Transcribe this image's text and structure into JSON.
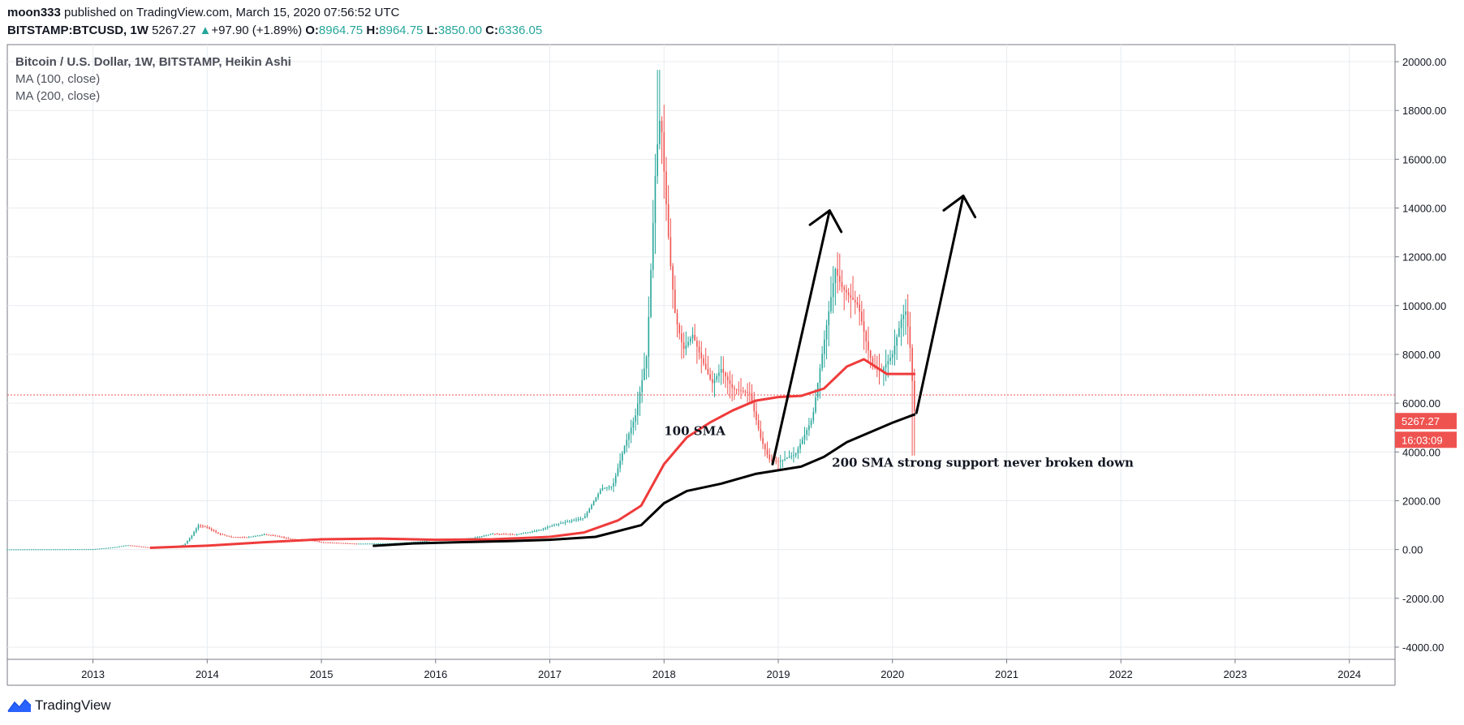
{
  "header": {
    "author": "moon333",
    "published": "published on TradingView.com, March 15, 2020 07:56:52 UTC",
    "symbol": "BITSTAMP:BTCUSD, 1W",
    "last": "5267.27",
    "change_arrow": "▲",
    "change": "+97.90 (+1.89%)",
    "ohlc": [
      {
        "key": "O:",
        "value": "8964.75"
      },
      {
        "key": "H:",
        "value": "8964.75"
      },
      {
        "key": "L:",
        "value": "3850.00"
      },
      {
        "key": "C:",
        "value": "6336.05"
      }
    ]
  },
  "legend": {
    "main": "Bitcoin / U.S. Dollar, 1W, BITSTAMP, Heikin Ashi",
    "ma1": "MA (100, close)",
    "ma2": "MA (200, close)"
  },
  "footer": {
    "brand": "TradingView"
  },
  "colors": {
    "up": "#26a69a",
    "down": "#ef5350",
    "ma100": "#ef3b3b",
    "ma200": "#000000",
    "grid": "#e8ebef"
  },
  "chart_data": {
    "type": "candlestick",
    "style": "Heikin Ashi",
    "x_axis": {
      "ticks": [
        "2013",
        "2014",
        "2015",
        "2016",
        "2017",
        "2018",
        "2019",
        "2020",
        "2021",
        "2022",
        "2023",
        "2024"
      ],
      "range": [
        2012.25,
        2024.4
      ]
    },
    "y_axis": {
      "ticks": [
        -4000,
        -2000,
        0,
        2000,
        4000,
        6000,
        8000,
        10000,
        12000,
        14000,
        16000,
        18000,
        20000
      ],
      "tick_labels": [
        "-4000.00",
        "-2000.00",
        "0.00",
        "2000.00",
        "4000.00",
        "6000.00",
        "8000.00",
        "10000.00",
        "12000.00",
        "14000.00",
        "16000.00",
        "18000.00",
        "20000.00"
      ],
      "range": [
        -4500,
        20700
      ]
    },
    "price_path": [
      [
        2012.25,
        5
      ],
      [
        2013.0,
        15
      ],
      [
        2013.2,
        100
      ],
      [
        2013.3,
        180
      ],
      [
        2013.5,
        80
      ],
      [
        2013.7,
        110
      ],
      [
        2013.8,
        200
      ],
      [
        2013.87,
        600
      ],
      [
        2013.92,
        1000
      ],
      [
        2014.0,
        900
      ],
      [
        2014.1,
        650
      ],
      [
        2014.2,
        520
      ],
      [
        2014.35,
        500
      ],
      [
        2014.5,
        620
      ],
      [
        2014.6,
        560
      ],
      [
        2014.75,
        420
      ],
      [
        2014.9,
        380
      ],
      [
        2015.0,
        300
      ],
      [
        2015.3,
        240
      ],
      [
        2015.6,
        250
      ],
      [
        2015.9,
        340
      ],
      [
        2016.0,
        420
      ],
      [
        2016.3,
        440
      ],
      [
        2016.5,
        650
      ],
      [
        2016.7,
        620
      ],
      [
        2016.9,
        780
      ],
      [
        2017.0,
        950
      ],
      [
        2017.15,
        1150
      ],
      [
        2017.3,
        1300
      ],
      [
        2017.45,
        2500
      ],
      [
        2017.55,
        2600
      ],
      [
        2017.65,
        4200
      ],
      [
        2017.75,
        5500
      ],
      [
        2017.85,
        8000
      ],
      [
        2017.93,
        16000
      ],
      [
        2017.97,
        18000
      ],
      [
        2018.0,
        15500
      ],
      [
        2018.05,
        12000
      ],
      [
        2018.1,
        9500
      ],
      [
        2018.17,
        8200
      ],
      [
        2018.25,
        8800
      ],
      [
        2018.33,
        7800
      ],
      [
        2018.42,
        6800
      ],
      [
        2018.5,
        7400
      ],
      [
        2018.6,
        6600
      ],
      [
        2018.75,
        6400
      ],
      [
        2018.85,
        4500
      ],
      [
        2018.92,
        3700
      ],
      [
        2019.0,
        3600
      ],
      [
        2019.15,
        3900
      ],
      [
        2019.3,
        5400
      ],
      [
        2019.4,
        8500
      ],
      [
        2019.5,
        11500
      ],
      [
        2019.55,
        10800
      ],
      [
        2019.62,
        10400
      ],
      [
        2019.7,
        10000
      ],
      [
        2019.78,
        8300
      ],
      [
        2019.83,
        7500
      ],
      [
        2019.9,
        7300
      ],
      [
        2020.0,
        8000
      ],
      [
        2020.08,
        9500
      ],
      [
        2020.12,
        9800
      ],
      [
        2020.16,
        8000
      ],
      [
        2020.18,
        6336
      ],
      [
        2020.2,
        5267
      ]
    ],
    "price_high": 19666,
    "price_low_last": 3850,
    "ma100": [
      [
        2013.5,
        70
      ],
      [
        2014.0,
        160
      ],
      [
        2014.5,
        300
      ],
      [
        2015.0,
        420
      ],
      [
        2015.5,
        450
      ],
      [
        2016.0,
        400
      ],
      [
        2016.5,
        420
      ],
      [
        2017.0,
        520
      ],
      [
        2017.3,
        700
      ],
      [
        2017.6,
        1200
      ],
      [
        2017.8,
        1800
      ],
      [
        2018.0,
        3500
      ],
      [
        2018.2,
        4600
      ],
      [
        2018.4,
        5200
      ],
      [
        2018.6,
        5700
      ],
      [
        2018.8,
        6100
      ],
      [
        2019.0,
        6250
      ],
      [
        2019.2,
        6300
      ],
      [
        2019.4,
        6600
      ],
      [
        2019.6,
        7500
      ],
      [
        2019.75,
        7800
      ],
      [
        2019.85,
        7500
      ],
      [
        2019.95,
        7200
      ],
      [
        2020.2,
        7200
      ]
    ],
    "ma200": [
      [
        2015.45,
        150
      ],
      [
        2015.8,
        250
      ],
      [
        2016.2,
        300
      ],
      [
        2016.6,
        340
      ],
      [
        2017.0,
        400
      ],
      [
        2017.4,
        520
      ],
      [
        2017.8,
        1000
      ],
      [
        2018.0,
        1900
      ],
      [
        2018.2,
        2400
      ],
      [
        2018.5,
        2700
      ],
      [
        2018.8,
        3100
      ],
      [
        2019.0,
        3250
      ],
      [
        2019.2,
        3400
      ],
      [
        2019.4,
        3800
      ],
      [
        2019.6,
        4400
      ],
      [
        2019.8,
        4800
      ],
      [
        2020.0,
        5200
      ],
      [
        2020.2,
        5550
      ]
    ],
    "horizontal_line": {
      "value": 6336.05,
      "color": "#ef5350",
      "style": "dotted"
    },
    "annotations": [
      {
        "text": "100 SMA",
        "x": 2018.0,
        "y": 4700
      },
      {
        "text": "200 SMA strong support never broken down",
        "x": 2019.47,
        "y": 3400
      }
    ],
    "arrows": [
      {
        "from": [
          2018.95,
          3500
        ],
        "to": [
          2019.45,
          13900
        ]
      },
      {
        "from": [
          2020.21,
          5600
        ],
        "to": [
          2020.62,
          14500
        ]
      }
    ],
    "badges": [
      {
        "text": "5267.27",
        "value": 5267.27
      },
      {
        "text": "16:03:09",
        "value": 4500
      }
    ]
  }
}
